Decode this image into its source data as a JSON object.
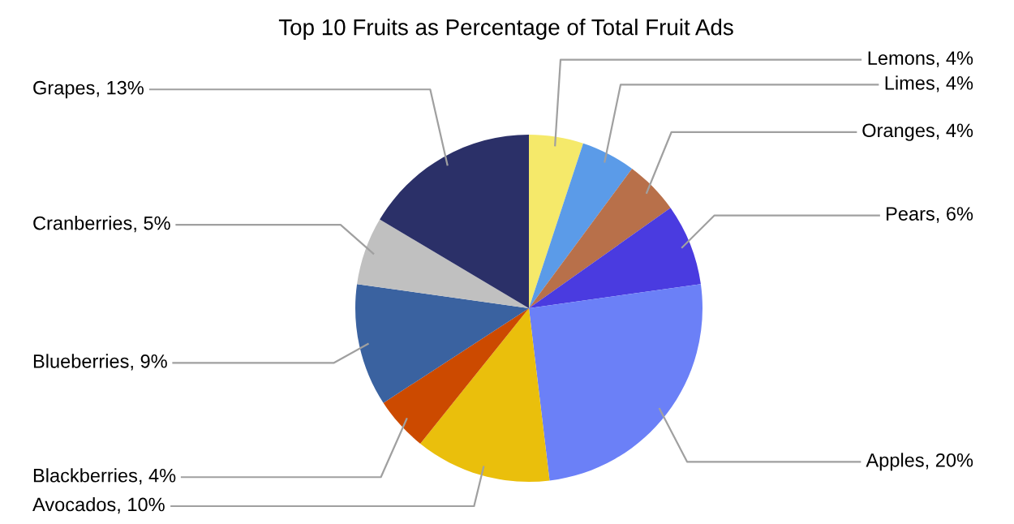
{
  "chart_data": {
    "type": "pie",
    "title": "Top 10 Fruits as Percentage of Total Fruit Ads",
    "categories": [
      "Lemons",
      "Limes",
      "Oranges",
      "Pears",
      "Apples",
      "Avocados",
      "Blackberries",
      "Blueberries",
      "Cranberries",
      "Grapes"
    ],
    "values": [
      4,
      4,
      4,
      6,
      20,
      10,
      4,
      9,
      5,
      13
    ],
    "value_labels": [
      "4%",
      "4%",
      "4%",
      "6%",
      "20%",
      "10%",
      "4%",
      "9%",
      "5%",
      "13%"
    ],
    "colors": [
      "#f5e96a",
      "#5b9be8",
      "#b8704a",
      "#4a3be0",
      "#6b80f7",
      "#eabf0c",
      "#cc4a00",
      "#3a62a0",
      "#c0c0c0",
      "#2b3068"
    ]
  }
}
